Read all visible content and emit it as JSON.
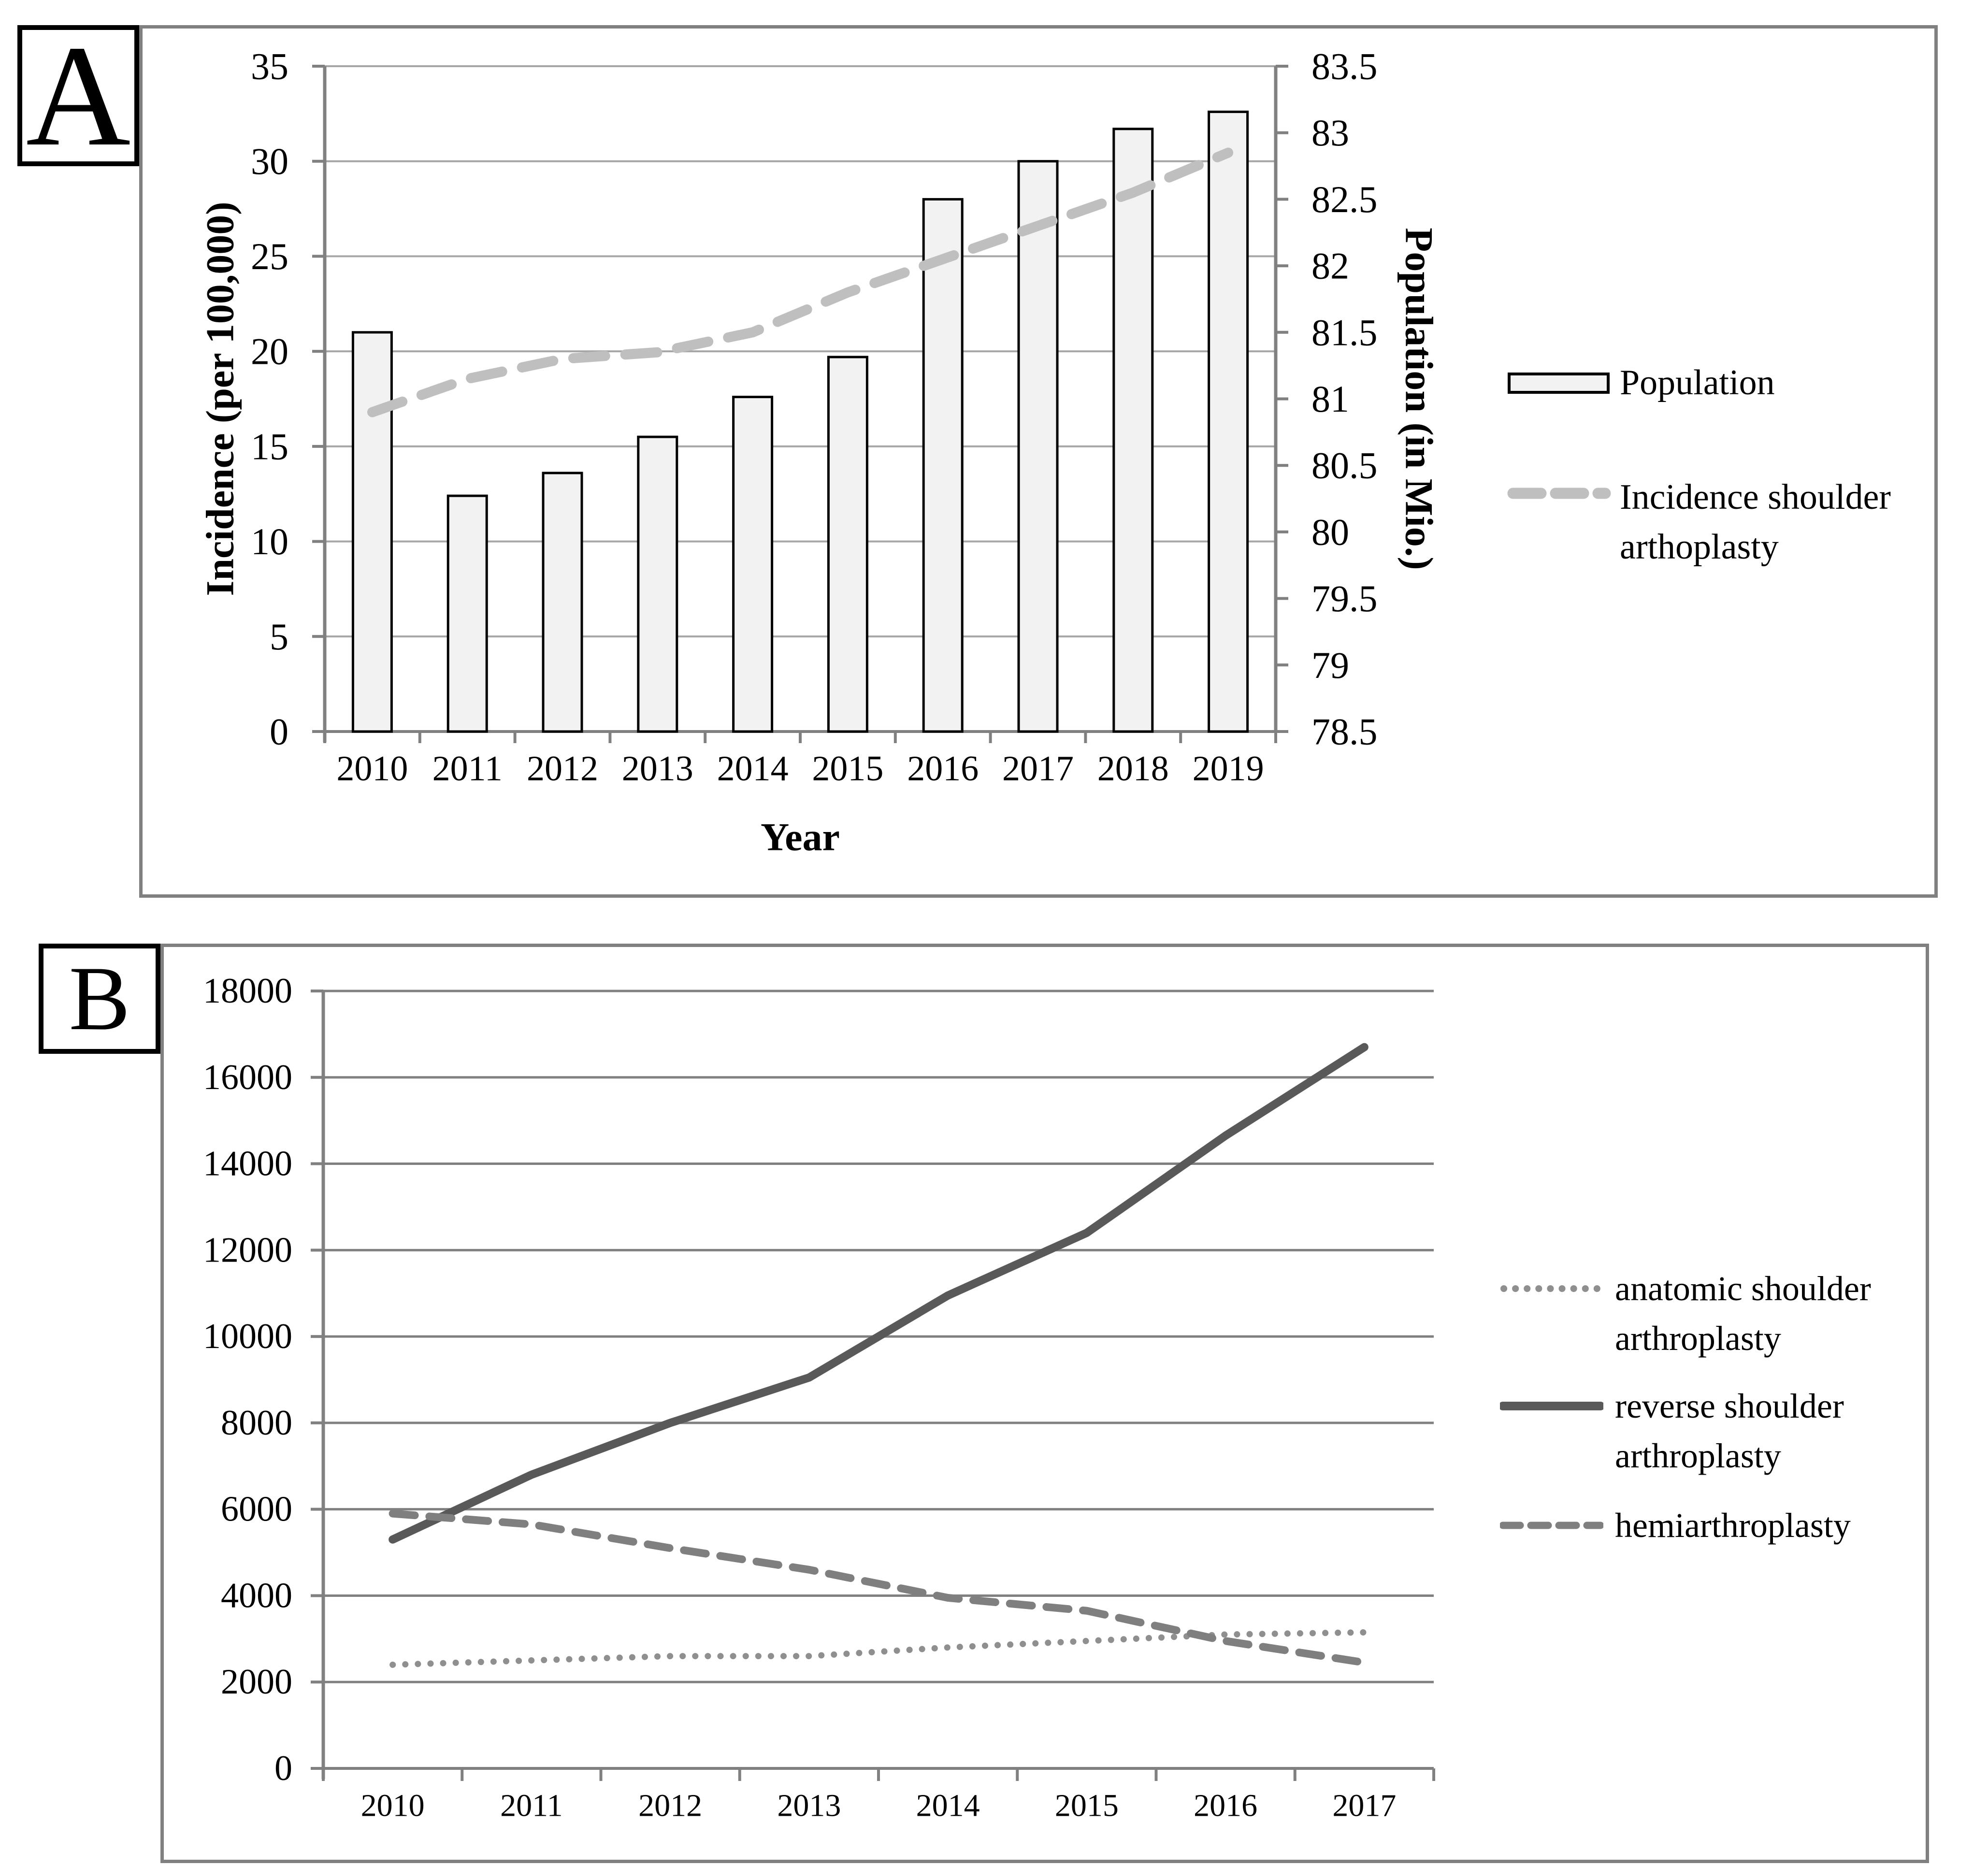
{
  "figure": {
    "panelA": {
      "label": "A",
      "legend": [
        {
          "label": "Population",
          "swatch": "bar"
        },
        {
          "label": "Incidence shoulder arthoplasty",
          "swatch": "dashed-line"
        }
      ]
    },
    "panelB": {
      "label": "B",
      "legend": [
        {
          "label": "anatomic shoulder arthroplasty",
          "swatch": "dotted-line"
        },
        {
          "label": "reverse shoulder arthroplasty",
          "swatch": "solid-line"
        },
        {
          "label": "hemiarthroplasty",
          "swatch": "dashed-line"
        }
      ]
    },
    "colors": {
      "frame": "#808080",
      "axis": "#808080",
      "gridA": "#a6a6a6",
      "gridB": "#808080",
      "barFill": "#f2f2f2",
      "barStroke": "#000000",
      "dashedLineA": "#bfbfbf",
      "reverseLine": "#595959",
      "hemiLine": "#7f7f7f",
      "anatomicLine": "#8f8f8f",
      "text": "#000000"
    }
  },
  "chart_data": [
    {
      "panel": "A",
      "type": "bar",
      "subtype": "bar-plus-line-dual-axis",
      "categories": [
        "2010",
        "2011",
        "2012",
        "2013",
        "2014",
        "2015",
        "2016",
        "2017",
        "2018",
        "2019"
      ],
      "bar_series": {
        "legend_label": "Population",
        "axis": "left",
        "values": [
          21.0,
          12.4,
          13.6,
          15.5,
          17.6,
          19.7,
          28.0,
          30.0,
          31.7,
          32.6
        ]
      },
      "line_series": {
        "legend_label": "Incidence shoulder arthoplasty",
        "axis": "right",
        "style": "dashed",
        "values": [
          80.9,
          81.15,
          81.3,
          81.35,
          81.5,
          81.8,
          82.05,
          82.3,
          82.55,
          82.85
        ]
      },
      "left_axis": {
        "title": "Incidence (per 100,000)",
        "min": 0,
        "max": 35,
        "step": 5,
        "ticks": [
          "35",
          "30",
          "25",
          "20",
          "15",
          "10",
          "5",
          "0"
        ]
      },
      "right_axis": {
        "title": "Population (in Mio.)",
        "min": 78.5,
        "max": 83.5,
        "step": 0.5,
        "ticks": [
          "83.5",
          "83",
          "82.5",
          "82",
          "81.5",
          "81",
          "80.5",
          "80",
          "79.5",
          "79",
          "78.5"
        ]
      },
      "x_axis": {
        "title": "Year"
      },
      "grid": true,
      "legend_position": "right"
    },
    {
      "panel": "B",
      "type": "line",
      "categories": [
        "2010",
        "2011",
        "2012",
        "2013",
        "2014",
        "2015",
        "2016",
        "2017"
      ],
      "series": [
        {
          "name": "anatomic shoulder arthroplasty",
          "style": "dotted",
          "values": [
            2400,
            2500,
            2600,
            2600,
            2800,
            2950,
            3100,
            3150
          ]
        },
        {
          "name": "reverse shoulder arthroplasty",
          "style": "solid",
          "values": [
            5300,
            6800,
            8000,
            9050,
            10950,
            12400,
            14650,
            16700
          ]
        },
        {
          "name": "hemiarthroplasty",
          "style": "dashed",
          "values": [
            5900,
            5650,
            5100,
            4600,
            3950,
            3650,
            2950,
            2450
          ]
        }
      ],
      "y_axis": {
        "min": 0,
        "max": 18000,
        "step": 2000,
        "ticks": [
          "18000",
          "16000",
          "14000",
          "12000",
          "10000",
          "8000",
          "6000",
          "4000",
          "2000",
          "0"
        ]
      },
      "x_axis": {
        "title": ""
      },
      "grid": true,
      "legend_position": "right"
    }
  ]
}
